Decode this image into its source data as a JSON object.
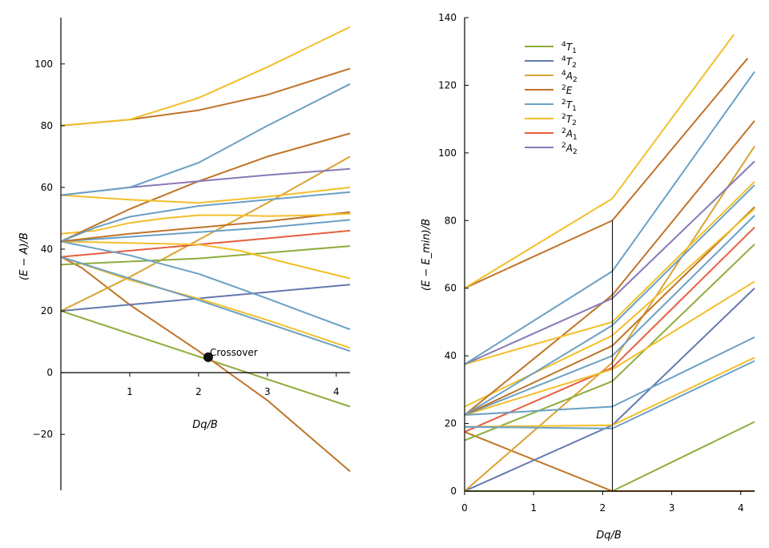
{
  "chart_data": [
    {
      "type": "line",
      "xlabel": "Dq/B",
      "ylabel": "(E − A)/B",
      "xlim": [
        0,
        4.2
      ],
      "ylim": [
        -35,
        115
      ],
      "xticks": [
        "1",
        "2",
        "3",
        "4"
      ],
      "yticks": [
        "−20",
        "0",
        "20",
        "40",
        "60",
        "80",
        "100"
      ],
      "grid": false,
      "annotation": {
        "text": "Crossover",
        "x": 2.14,
        "y": 5
      },
      "series": [
        {
          "color": "#8fac3c",
          "x": [
            0,
            4.2
          ],
          "y": [
            20,
            -11
          ]
        },
        {
          "color": "#c07428",
          "x": [
            0,
            0.3,
            1.0,
            2.0,
            3.0,
            4.2
          ],
          "y": [
            37.5,
            34,
            22,
            7,
            -9,
            -32
          ]
        },
        {
          "color": "#6478b0",
          "x": [
            0,
            4.2
          ],
          "y": [
            20,
            28.5
          ]
        },
        {
          "color": "#d9a332",
          "x": [
            0,
            1.0,
            2.0,
            3.0,
            4.2
          ],
          "y": [
            20,
            31,
            43,
            55,
            70
          ]
        },
        {
          "color": "#8fac3c",
          "x": [
            0,
            2.0,
            4.2
          ],
          "y": [
            35,
            37,
            41
          ]
        },
        {
          "color": "#e85e40",
          "x": [
            0,
            1.0,
            2.0,
            3.0,
            4.2
          ],
          "y": [
            37.5,
            39.5,
            41.5,
            43.5,
            46
          ]
        },
        {
          "color": "#f2bf2a",
          "x": [
            0,
            1.0,
            2.0,
            3.0,
            4.2
          ],
          "y": [
            37.5,
            30,
            24,
            17,
            8
          ]
        },
        {
          "color": "#6aa0c4",
          "x": [
            0,
            1.0,
            2.0,
            3.0,
            4.2
          ],
          "y": [
            37.5,
            30.5,
            23.5,
            16,
            7
          ]
        },
        {
          "color": "#6aa0c4",
          "x": [
            0,
            1.0,
            2.0,
            3.0,
            4.2
          ],
          "y": [
            42.5,
            38,
            32,
            24,
            14
          ]
        },
        {
          "color": "#f2bf2a",
          "x": [
            0,
            1.0,
            2.0,
            2.6,
            3.2,
            4.2
          ],
          "y": [
            42.5,
            42,
            41.5,
            39.5,
            36,
            30.5
          ]
        },
        {
          "color": "#6aa0c4",
          "x": [
            0,
            1.0,
            2.0,
            3.0,
            4.2
          ],
          "y": [
            42.5,
            44,
            45.5,
            47,
            49.5
          ]
        },
        {
          "color": "#c07428",
          "x": [
            0,
            1.0,
            2.0,
            3.0,
            4.2
          ],
          "y": [
            42.5,
            45,
            47,
            49,
            52
          ]
        },
        {
          "color": "#f2bf2a",
          "x": [
            0,
            0.5,
            1.0,
            1.5,
            2.0,
            2.5,
            3.0,
            3.5,
            4.2
          ],
          "y": [
            45,
            46,
            48.5,
            50,
            51,
            51,
            50.7,
            50.9,
            51.5
          ]
        },
        {
          "color": "#c07428",
          "x": [
            0,
            1.0,
            2.0,
            3.0,
            4.2
          ],
          "y": [
            42.5,
            53,
            62,
            70,
            77.5
          ]
        },
        {
          "color": "#6aa0c4",
          "x": [
            0,
            0.5,
            1.0,
            2.0,
            3.0,
            4.2
          ],
          "y": [
            42.5,
            47,
            50.5,
            54,
            56,
            58.5
          ]
        },
        {
          "color": "#f2bf2a",
          "x": [
            0,
            1.0,
            2.0,
            3.0,
            4.2
          ],
          "y": [
            57.5,
            56,
            55,
            57,
            60
          ]
        },
        {
          "color": "#8a78b8",
          "x": [
            0,
            1.0,
            2.0,
            3.0,
            4.2
          ],
          "y": [
            57.5,
            60,
            62,
            64,
            66
          ]
        },
        {
          "color": "#6aa0c4",
          "x": [
            0,
            1.0,
            2.0,
            3.0,
            4.2
          ],
          "y": [
            57.5,
            60,
            68,
            80,
            93.5
          ]
        },
        {
          "color": "#c07428",
          "x": [
            0,
            1.0,
            2.0,
            3.0,
            4.2
          ],
          "y": [
            80,
            82,
            85,
            90,
            98.5
          ]
        },
        {
          "color": "#f2bf2a",
          "x": [
            0,
            1.0,
            2.0,
            3.0,
            4.2
          ],
          "y": [
            80,
            82,
            89,
            99,
            112
          ]
        }
      ]
    },
    {
      "type": "line",
      "xlabel": "Dq/B",
      "ylabel": "(E − E_min)/B",
      "xlim": [
        0,
        4.2
      ],
      "ylim": [
        0,
        140
      ],
      "xticks": [
        "0",
        "1",
        "2",
        "3",
        "4"
      ],
      "yticks": [
        "0",
        "20",
        "40",
        "60",
        "80",
        "100",
        "120",
        "140"
      ],
      "grid": false,
      "legend": {
        "position": "top-left",
        "entries": [
          {
            "sup": "4",
            "main": "T",
            "sub": "1",
            "color": "#8fac3c"
          },
          {
            "sup": "4",
            "main": "T",
            "sub": "2",
            "color": "#6478b0"
          },
          {
            "sup": "4",
            "main": "A",
            "sub": "2",
            "color": "#d9a332"
          },
          {
            "sup": "2",
            "main": "E",
            "sub": "",
            "color": "#c07428"
          },
          {
            "sup": "2",
            "main": "T",
            "sub": "1",
            "color": "#6aa0c4"
          },
          {
            "sup": "2",
            "main": "T",
            "sub": "2",
            "color": "#f2bf2a"
          },
          {
            "sup": "2",
            "main": "A",
            "sub": "1",
            "color": "#e85e40"
          },
          {
            "sup": "2",
            "main": "A",
            "sub": "2",
            "color": "#8a78b8"
          }
        ]
      },
      "vline_x": 2.14,
      "series": [
        {
          "color": "#8fac3c",
          "x": [
            0,
            2.14
          ],
          "y": [
            0,
            0
          ]
        },
        {
          "color": "#8fac3c",
          "x": [
            2.14,
            4.2
          ],
          "y": [
            0,
            20.5
          ]
        },
        {
          "color": "#c07428",
          "x": [
            2.14,
            4.2
          ],
          "y": [
            0,
            0
          ]
        },
        {
          "color": "#c07428",
          "x": [
            0,
            2.14
          ],
          "y": [
            17.5,
            0
          ]
        },
        {
          "color": "#6478b0",
          "x": [
            0,
            2.14,
            4.2
          ],
          "y": [
            0,
            19.5,
            60
          ]
        },
        {
          "color": "#d9a332",
          "x": [
            0,
            2.14,
            4.2
          ],
          "y": [
            0,
            38,
            102
          ]
        },
        {
          "color": "#8fac3c",
          "x": [
            0,
            2.14,
            4.2
          ],
          "y": [
            15,
            32.5,
            73
          ]
        },
        {
          "color": "#e85e40",
          "x": [
            0,
            2.14,
            4.2
          ],
          "y": [
            17.5,
            36.5,
            78
          ]
        },
        {
          "color": "#f2bf2a",
          "x": [
            0,
            2.14,
            4.2
          ],
          "y": [
            19,
            19.5,
            39.5
          ]
        },
        {
          "color": "#6aa0c4",
          "x": [
            0,
            2.14,
            4.2
          ],
          "y": [
            19,
            18.5,
            38.5
          ]
        },
        {
          "color": "#6aa0c4",
          "x": [
            0,
            2.14,
            4.2
          ],
          "y": [
            22.5,
            25,
            45.5
          ]
        },
        {
          "color": "#f2bf2a",
          "x": [
            0,
            2.14,
            4.2
          ],
          "y": [
            22.5,
            36,
            62
          ]
        },
        {
          "color": "#6aa0c4",
          "x": [
            0,
            2.14,
            4.2
          ],
          "y": [
            22.5,
            40,
            81.5
          ]
        },
        {
          "color": "#c07428",
          "x": [
            0,
            2.14,
            4.2
          ],
          "y": [
            22.5,
            43,
            84
          ]
        },
        {
          "color": "#f2bf2a",
          "x": [
            0,
            2.14,
            4.2
          ],
          "y": [
            25,
            46,
            83.5
          ]
        },
        {
          "color": "#c07428",
          "x": [
            0,
            2.14,
            4.2
          ],
          "y": [
            22.5,
            58,
            109.5
          ]
        },
        {
          "color": "#6aa0c4",
          "x": [
            0,
            2.14,
            4.2
          ],
          "y": [
            22.5,
            49,
            90.5
          ]
        },
        {
          "color": "#f2bf2a",
          "x": [
            0,
            2.14,
            4.2
          ],
          "y": [
            37.5,
            50,
            91.5
          ]
        },
        {
          "color": "#8a78b8",
          "x": [
            0,
            2.14,
            4.2
          ],
          "y": [
            37.5,
            57,
            97.5
          ]
        },
        {
          "color": "#6aa0c4",
          "x": [
            0,
            2.14,
            4.2
          ],
          "y": [
            37.5,
            65,
            124
          ]
        },
        {
          "color": "#c07428",
          "x": [
            0,
            2.14,
            4.1
          ],
          "y": [
            60,
            80,
            128
          ]
        },
        {
          "color": "#f2bf2a",
          "x": [
            0,
            2.14,
            3.9
          ],
          "y": [
            60,
            86.5,
            135
          ]
        }
      ]
    }
  ]
}
